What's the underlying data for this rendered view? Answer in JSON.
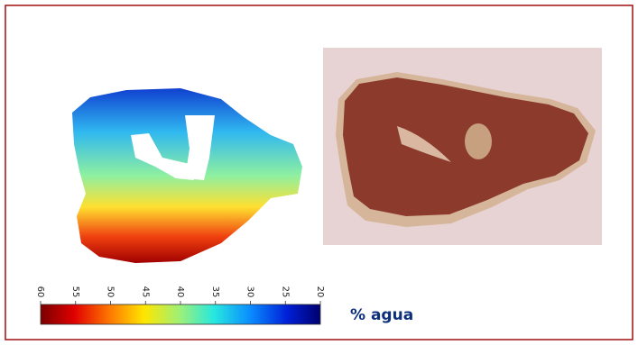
{
  "colorbar": {
    "lim": [
      60,
      20
    ],
    "ticks": [
      60,
      55,
      50,
      45,
      40,
      35,
      30,
      25,
      20
    ],
    "label": "% agua"
  }
}
